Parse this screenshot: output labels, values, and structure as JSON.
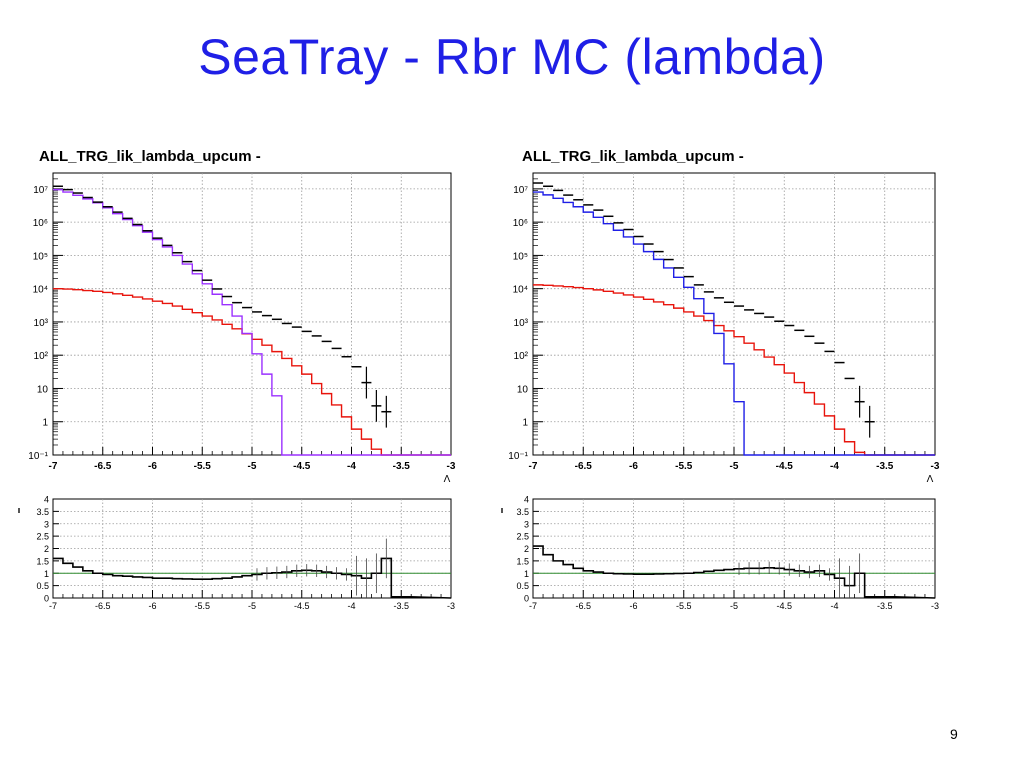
{
  "slide": {
    "title": "SeaTray - Rbr MC (lambda)",
    "page_number": "9"
  },
  "colors": {
    "title": "#1f1fe6",
    "data": "#000000",
    "model_left": "#9b30ff",
    "model_right": "#1f1fe6",
    "fit": "#e8140c",
    "ratio_ref": "#2e8b2e",
    "grid": "#9a9a9a"
  },
  "chart_data": [
    {
      "type": "line",
      "title": "ALL_TRG_lik_lambda_upcum -",
      "xlabel": "Λ",
      "xlim": [
        -7,
        -3
      ],
      "ylim": [
        0.1,
        30000000
      ],
      "yscale": "log",
      "xticks": [
        "-7",
        "-6.5",
        "-6",
        "-5.5",
        "-5",
        "-4.5",
        "-4",
        "-3.5",
        "-3"
      ],
      "yticks": [
        "10⁻¹",
        "1",
        "10",
        "10²",
        "10³",
        "10⁴",
        "10⁵",
        "10⁶",
        "10⁷"
      ],
      "grid": true,
      "x": [
        -7.0,
        -6.9,
        -6.8,
        -6.7,
        -6.6,
        -6.5,
        -6.4,
        -6.3,
        -6.2,
        -6.1,
        -6.0,
        -5.9,
        -5.8,
        -5.7,
        -5.6,
        -5.5,
        -5.4,
        -5.3,
        -5.2,
        -5.1,
        -5.0,
        -4.9,
        -4.8,
        -4.7,
        -4.6,
        -4.5,
        -4.4,
        -4.3,
        -4.2,
        -4.1,
        -4.0,
        -3.9,
        -3.8,
        -3.7,
        -3.6,
        -3.5
      ],
      "series": [
        {
          "style": "data",
          "values": [
            12000000,
            9500000,
            7500000,
            5500000,
            4000000,
            2900000,
            2000000,
            1300000,
            850000,
            550000,
            330000,
            200000,
            120000,
            65000,
            35000,
            18000,
            9800,
            5800,
            3800,
            2700,
            2000,
            1550,
            1200,
            900,
            700,
            520,
            380,
            260,
            160,
            90,
            45,
            15,
            3,
            2,
            0.1,
            0.1
          ]
        },
        {
          "style": "model",
          "values": [
            9500000,
            8000000,
            6400000,
            5000000,
            3800000,
            2700000,
            1800000,
            1200000,
            780000,
            500000,
            300000,
            180000,
            100000,
            55000,
            28000,
            14000,
            6800,
            3300,
            1500,
            450,
            110,
            27,
            6,
            0.1,
            0.1,
            0.1,
            0.1,
            0.1,
            0.1,
            0.1,
            0.1,
            0.1,
            0.1,
            0.1,
            0.1,
            0.1
          ]
        },
        {
          "style": "fit",
          "values": [
            10000,
            9700,
            9300,
            8800,
            8300,
            7700,
            7000,
            6300,
            5600,
            4900,
            4200,
            3600,
            3000,
            2400,
            1900,
            1500,
            1150,
            850,
            620,
            440,
            300,
            200,
            128,
            80,
            48,
            27,
            14,
            7,
            3.2,
            1.4,
            0.6,
            0.3,
            0.15,
            0.1,
            0.1,
            0.1
          ]
        }
      ],
      "ratio": {
        "ylim": [
          0,
          4
        ],
        "yticks": [
          "0",
          "0.5",
          "1",
          "1.5",
          "2",
          "2.5",
          "3",
          "3.5",
          "4"
        ],
        "reference": 1,
        "values": [
          1.6,
          1.4,
          1.25,
          1.1,
          1.0,
          0.95,
          0.9,
          0.88,
          0.85,
          0.83,
          0.8,
          0.8,
          0.78,
          0.77,
          0.76,
          0.76,
          0.78,
          0.8,
          0.85,
          0.9,
          0.95,
          1.0,
          1.02,
          1.05,
          1.1,
          1.12,
          1.1,
          1.05,
          1.0,
          0.95,
          0.9,
          0.8,
          1.0,
          1.6,
          0.05,
          0.05
        ]
      }
    },
    {
      "type": "line",
      "title": "ALL_TRG_lik_lambda_upcum -",
      "xlabel": "Λ",
      "xlim": [
        -7,
        -3
      ],
      "ylim": [
        0.1,
        30000000
      ],
      "yscale": "log",
      "xticks": [
        "-7",
        "-6.5",
        "-6",
        "-5.5",
        "-5",
        "-4.5",
        "-4",
        "-3.5",
        "-3"
      ],
      "yticks": [
        "10⁻¹",
        "1",
        "10",
        "10²",
        "10³",
        "10⁴",
        "10⁵",
        "10⁶",
        "10⁷"
      ],
      "grid": true,
      "x": [
        -7.0,
        -6.9,
        -6.8,
        -6.7,
        -6.6,
        -6.5,
        -6.4,
        -6.3,
        -6.2,
        -6.1,
        -6.0,
        -5.9,
        -5.8,
        -5.7,
        -5.6,
        -5.5,
        -5.4,
        -5.3,
        -5.2,
        -5.1,
        -5.0,
        -4.9,
        -4.8,
        -4.7,
        -4.6,
        -4.5,
        -4.4,
        -4.3,
        -4.2,
        -4.1,
        -4.0,
        -3.9,
        -3.8,
        -3.7,
        -3.6,
        -3.5
      ],
      "series": [
        {
          "style": "data",
          "values": [
            15000000,
            12000000,
            9000000,
            6500000,
            4700000,
            3300000,
            2300000,
            1500000,
            950000,
            600000,
            370000,
            220000,
            130000,
            75000,
            42000,
            23000,
            13000,
            8000,
            5300,
            3900,
            3000,
            2300,
            1800,
            1400,
            1050,
            780,
            560,
            370,
            230,
            130,
            60,
            20,
            4,
            1,
            0.1,
            0.1
          ]
        },
        {
          "style": "model",
          "values": [
            8000000,
            6600000,
            5200000,
            3900000,
            2900000,
            2000000,
            1400000,
            900000,
            570000,
            360000,
            220000,
            130000,
            76000,
            42000,
            22000,
            11000,
            5000,
            1800,
            450,
            55,
            4,
            0.1,
            0.1,
            0.1,
            0.1,
            0.1,
            0.1,
            0.1,
            0.1,
            0.1,
            0.1,
            0.1,
            0.1,
            0.1,
            0.1,
            0.1
          ]
        },
        {
          "style": "fit",
          "values": [
            13000,
            12600,
            12100,
            11500,
            10800,
            10000,
            9200,
            8300,
            7400,
            6500,
            5600,
            4800,
            4000,
            3300,
            2600,
            2000,
            1500,
            1100,
            780,
            540,
            360,
            230,
            145,
            88,
            52,
            29,
            15,
            7.5,
            3.4,
            1.5,
            0.6,
            0.25,
            0.12,
            0.1,
            0.1,
            0.1
          ]
        }
      ],
      "ratio": {
        "ylim": [
          0,
          4
        ],
        "yticks": [
          "0",
          "0.5",
          "1",
          "1.5",
          "2",
          "2.5",
          "3",
          "3.5",
          "4"
        ],
        "reference": 1,
        "values": [
          2.1,
          1.75,
          1.5,
          1.35,
          1.2,
          1.1,
          1.05,
          1.0,
          0.98,
          0.97,
          0.96,
          0.96,
          0.97,
          0.98,
          0.99,
          1.0,
          1.03,
          1.08,
          1.12,
          1.15,
          1.18,
          1.2,
          1.2,
          1.22,
          1.2,
          1.15,
          1.1,
          1.05,
          1.1,
          0.95,
          0.8,
          0.5,
          1.0,
          0.05,
          0.05,
          0.05
        ]
      }
    }
  ]
}
